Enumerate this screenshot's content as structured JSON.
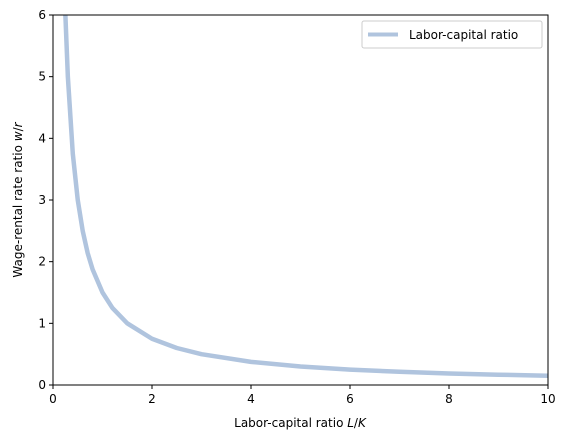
{
  "chart_data": {
    "type": "line",
    "title": "",
    "xlabel": "Labor-capital ratio L/K",
    "ylabel": "Wage-rental rate ratio w/r",
    "xlim": [
      0,
      10
    ],
    "ylim": [
      0,
      6
    ],
    "xticks": [
      "0",
      "2",
      "4",
      "6",
      "8",
      "10"
    ],
    "yticks": [
      "0",
      "1",
      "2",
      "3",
      "4",
      "5",
      "6"
    ],
    "grid": false,
    "legend_position": "top-right",
    "series": [
      {
        "name": "Labor-capital ratio",
        "color": "#b0c4de",
        "x": [
          0.25,
          0.3,
          0.4,
          0.5,
          0.6,
          0.7,
          0.8,
          1.0,
          1.2,
          1.5,
          2.0,
          2.5,
          3.0,
          4.0,
          5.0,
          6.0,
          7.0,
          8.0,
          9.0,
          10.0
        ],
        "y": [
          6.0,
          5.0,
          3.75,
          3.0,
          2.5,
          2.14,
          1.875,
          1.5,
          1.25,
          1.0,
          0.75,
          0.6,
          0.5,
          0.375,
          0.3,
          0.25,
          0.214,
          0.1875,
          0.167,
          0.15
        ]
      }
    ]
  }
}
